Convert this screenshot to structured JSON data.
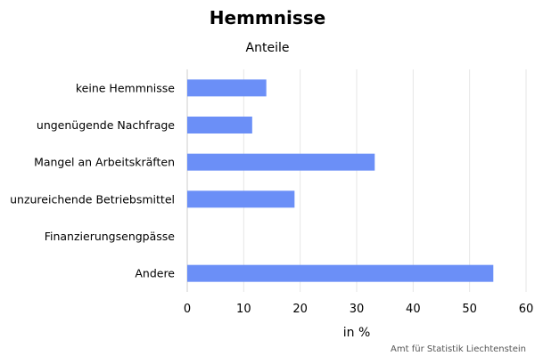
{
  "chart_data": {
    "type": "bar",
    "orientation": "horizontal",
    "title": "Hemmnisse",
    "subtitle": "Anteile",
    "xlabel": "in %",
    "ylabel": "",
    "categories": [
      "keine Hemmnisse",
      "ungenügende Nachfrage",
      "Mangel an Arbeitskräften",
      "unzureichende Betriebsmittel",
      "Finanzierungsengpässe",
      "Andere"
    ],
    "values": [
      14,
      11.5,
      33.2,
      19,
      0,
      54.2
    ],
    "xlim": [
      0,
      60
    ],
    "xticks": [
      0,
      10,
      20,
      30,
      40,
      50,
      60
    ],
    "grid": true,
    "legend": "none",
    "bar_color": "#6b8ff7",
    "credit": "Amt für Statistik Liechtenstein"
  }
}
